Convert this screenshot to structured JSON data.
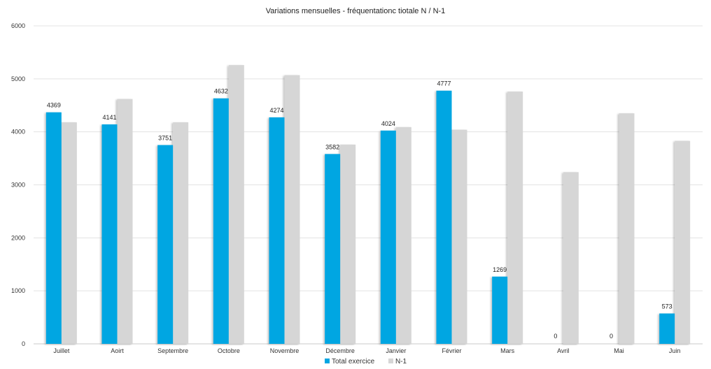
{
  "chart_data": {
    "type": "bar",
    "title": "Variations mensuelles - fréquentationc tiotale N / N-1",
    "xlabel": "",
    "ylabel": "",
    "ylim": [
      0,
      6000
    ],
    "yticks": [
      0,
      1000,
      2000,
      3000,
      4000,
      5000,
      6000
    ],
    "grid": true,
    "legend_position": "bottom",
    "categories": [
      "Juillet",
      "Aoirt",
      "Septembre",
      "Octobre",
      "Novembre",
      "Décembre",
      "Janvier",
      "Février",
      "Mars",
      "Avril",
      "Mai",
      "Juin"
    ],
    "series": [
      {
        "name": "Total exercice",
        "color": "#00a6e2",
        "values": [
          4369,
          4141,
          3751,
          4632,
          4274,
          3582,
          4024,
          4777,
          1269,
          0,
          0,
          573
        ],
        "data_labels": [
          "4369",
          "4141",
          "3751",
          "4632",
          "4274",
          "3582",
          "4024",
          "4777",
          "1269",
          "0",
          "0",
          "573"
        ]
      },
      {
        "name": "N-1",
        "color": "#d6d6d6",
        "values": [
          4180,
          4620,
          4180,
          5260,
          5070,
          3760,
          4090,
          4040,
          4760,
          3240,
          4350,
          3830
        ]
      }
    ]
  }
}
